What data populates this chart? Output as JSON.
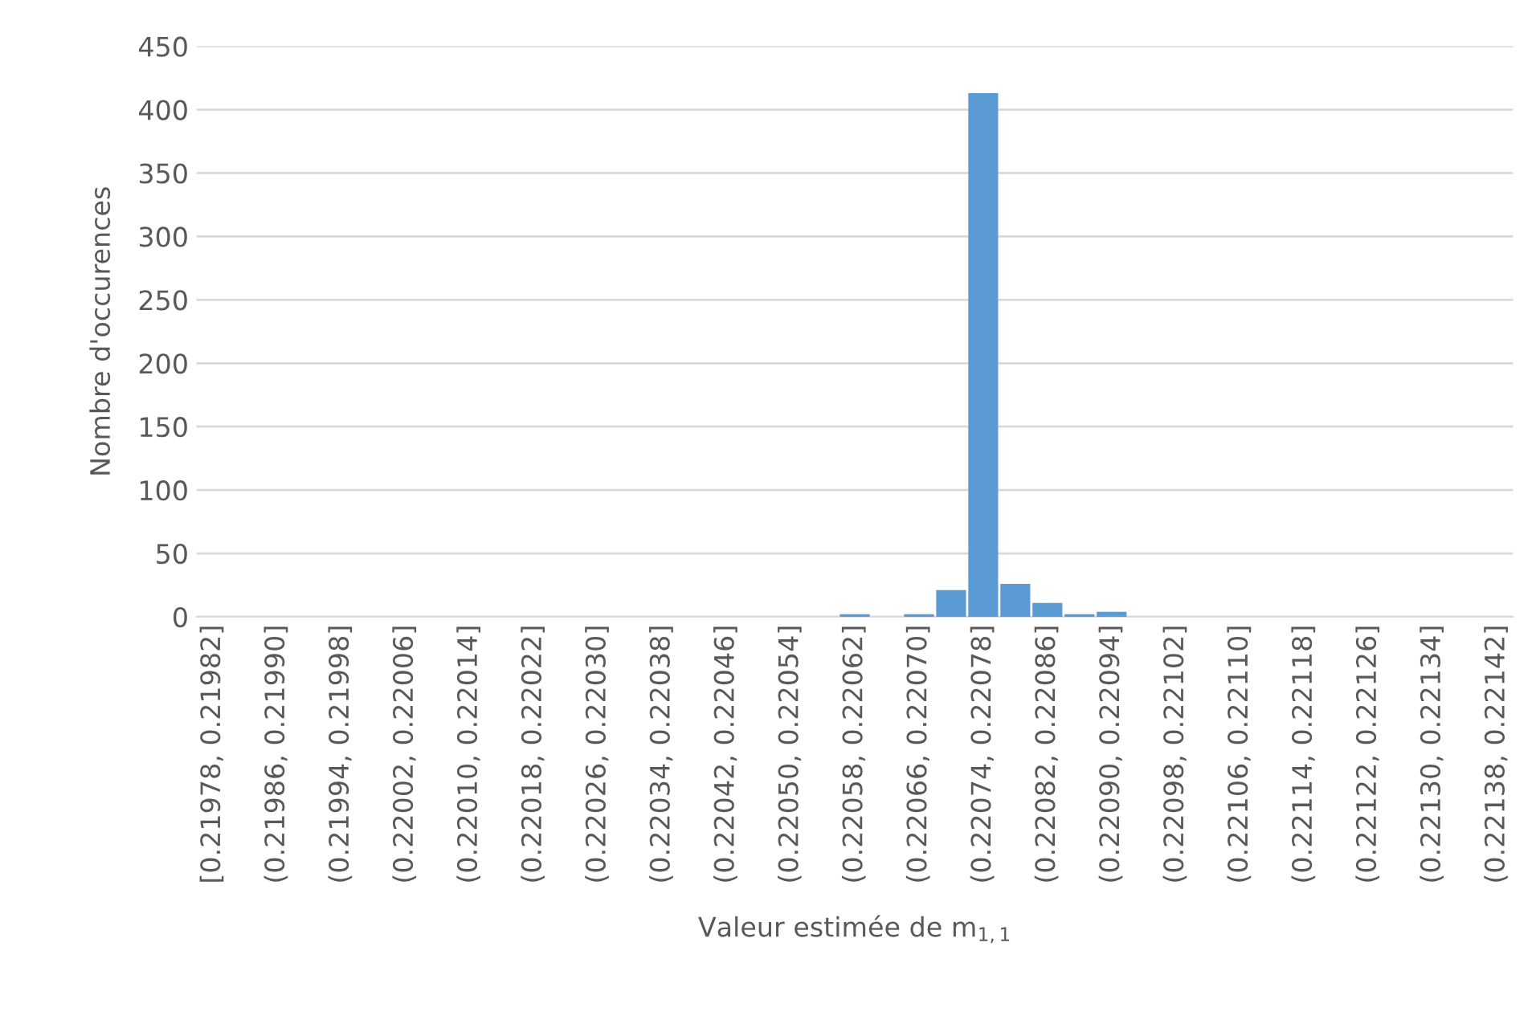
{
  "chart_data": {
    "type": "bar",
    "xlabel": "Valeur estimée de m$_{1,1}$",
    "ylabel": "Nombre d'occurences",
    "categories": [
      "[0.21978, 0.21982]",
      null,
      "(0.21986, 0.21990]",
      null,
      "(0.21994, 0.21998]",
      null,
      "(0.22002, 0.22006]",
      null,
      "(0.22010, 0.22014]",
      null,
      "(0.22018, 0.22022]",
      null,
      "(0.22026, 0.22030]",
      null,
      "(0.22034, 0.22038]",
      null,
      "(0.22042, 0.22046]",
      null,
      "(0.22050, 0.22054]",
      null,
      "(0.22058, 0.22062]",
      null,
      "(0.22066, 0.22070]",
      null,
      "(0.22074, 0.22078]",
      null,
      "(0.22082, 0.22086]",
      null,
      "(0.22090, 0.22094]",
      null,
      "(0.22098, 0.22102]",
      null,
      "(0.22106, 0.22110]",
      null,
      "(0.22114, 0.22118]",
      null,
      "(0.22122, 0.22126]",
      null,
      "(0.22130, 0.22134]",
      null,
      "(0.22138, 0.22142]"
    ],
    "values": [
      0,
      0,
      0,
      0,
      0,
      0,
      0,
      0,
      0,
      0,
      0,
      0,
      0,
      0,
      0,
      0,
      0,
      0,
      0,
      0,
      2,
      0,
      2,
      21,
      413,
      26,
      11,
      2,
      4,
      0,
      0,
      0,
      0,
      0,
      0,
      0,
      0,
      0,
      0,
      0,
      0
    ],
    "color": "#5b9bd5",
    "ylim": [
      0,
      450
    ],
    "yticks": [
      0,
      50,
      100,
      150,
      200,
      250,
      300,
      350,
      400,
      450
    ],
    "grid": "y"
  }
}
